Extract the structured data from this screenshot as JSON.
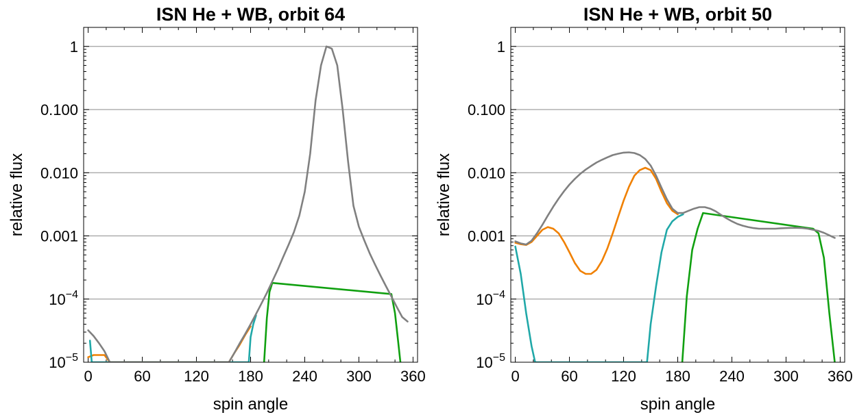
{
  "chart_data": [
    {
      "type": "line",
      "title": "ISN He + WB, orbit 64",
      "xlabel": "spin angle",
      "ylabel": "relative flux",
      "xlim": [
        -5,
        365
      ],
      "ylim": [
        1e-05,
        2
      ],
      "yscale": "log",
      "x_ticks": [
        "0",
        "60",
        "120",
        "180",
        "240",
        "300",
        "360"
      ],
      "y_ticks": [
        "10^-5",
        "10^-4",
        "0.001",
        "0.010",
        "0.100",
        "1"
      ],
      "grid": "horizontal",
      "series": [
        {
          "color": "#f08000",
          "x": [
            0,
            6,
            12,
            18,
            24,
            156,
            162,
            168,
            174,
            180
          ],
          "y": [
            1.2e-05,
            1.3e-05,
            1.3e-05,
            1.3e-05,
            1e-05,
            1e-05,
            1.4e-05,
            1.9e-05,
            2.7e-05,
            3.7e-05
          ]
        },
        {
          "color": "#20a8a8",
          "x": [
            2,
            3,
            4,
            178,
            180,
            183,
            186
          ],
          "y": [
            2.2e-05,
            1.5e-05,
            1e-05,
            1e-05,
            2.5e-05,
            4e-05,
            5.5e-05
          ]
        },
        {
          "color": "#10a010",
          "x": [
            195,
            198,
            201,
            204,
            336,
            340,
            343,
            346
          ],
          "y": [
            1e-05,
            5e-05,
            0.00013,
            0.00018,
            0.00012,
            6e-05,
            2.5e-05,
            1e-05
          ]
        },
        {
          "color": "#808080",
          "x": [
            0,
            6,
            12,
            18,
            24,
            156,
            162,
            168,
            174,
            180,
            186,
            192,
            198,
            204,
            210,
            216,
            222,
            228,
            234,
            240,
            246,
            252,
            258,
            264,
            270,
            276,
            282,
            288,
            294,
            300,
            306,
            312,
            318,
            324,
            330,
            336,
            342,
            348,
            354
          ],
          "y": [
            3.2e-05,
            2.6e-05,
            2e-05,
            1.5e-05,
            1e-05,
            1e-05,
            1.4e-05,
            2e-05,
            2.8e-05,
            4e-05,
            5.8e-05,
            8.5e-05,
            0.000125,
            0.00019,
            0.00029,
            0.00046,
            0.00072,
            0.00115,
            0.0021,
            0.005,
            0.02,
            0.14,
            0.5,
            1.0,
            0.92,
            0.5,
            0.1,
            0.015,
            0.003,
            0.0014,
            0.00085,
            0.00053,
            0.00035,
            0.000235,
            0.00016,
            0.00011,
            7.5e-05,
            5.2e-05,
            4.4e-05
          ]
        }
      ]
    },
    {
      "type": "line",
      "title": "ISN He + WB, orbit 50",
      "xlabel": "spin angle",
      "ylabel": "relative flux",
      "xlim": [
        -5,
        365
      ],
      "ylim": [
        1e-05,
        2
      ],
      "yscale": "log",
      "x_ticks": [
        "0",
        "60",
        "120",
        "180",
        "240",
        "300",
        "360"
      ],
      "y_ticks": [
        "10^-5",
        "10^-4",
        "0.001",
        "0.010",
        "0.100",
        "1"
      ],
      "grid": "horizontal",
      "series": [
        {
          "color": "#f08000",
          "x": [
            0,
            6,
            12,
            18,
            24,
            30,
            36,
            42,
            48,
            54,
            60,
            66,
            72,
            78,
            84,
            90,
            96,
            102,
            108,
            114,
            120,
            126,
            132,
            138,
            144,
            150,
            156,
            162,
            168,
            174,
            180
          ],
          "y": [
            0.00078,
            0.00074,
            0.00072,
            0.0008,
            0.001,
            0.00125,
            0.00138,
            0.0013,
            0.0011,
            0.0008,
            0.00055,
            0.00037,
            0.00028,
            0.00025,
            0.00025,
            0.00029,
            0.0004,
            0.00063,
            0.0011,
            0.002,
            0.0036,
            0.006,
            0.009,
            0.011,
            0.012,
            0.011,
            0.008,
            0.005,
            0.0033,
            0.0025,
            0.0022
          ]
        },
        {
          "color": "#20a8a8",
          "x": [
            0,
            6,
            12,
            18,
            22,
            146,
            150,
            156,
            162,
            168,
            174,
            180,
            186
          ],
          "y": [
            0.00068,
            0.00025,
            6e-05,
            1.8e-05,
            1e-05,
            1e-05,
            4e-05,
            0.00016,
            0.00055,
            0.00125,
            0.0017,
            0.002,
            0.0022
          ]
        },
        {
          "color": "#10a010",
          "x": [
            185,
            190,
            196,
            202,
            208,
            330,
            336,
            342,
            348,
            354
          ],
          "y": [
            1e-05,
            0.00011,
            0.0006,
            0.0013,
            0.0023,
            0.0013,
            0.0011,
            0.00045,
            6e-05,
            1e-05
          ]
        },
        {
          "color": "#808080",
          "x": [
            0,
            6,
            12,
            18,
            24,
            30,
            36,
            42,
            48,
            54,
            60,
            66,
            72,
            78,
            84,
            90,
            96,
            102,
            108,
            114,
            120,
            126,
            132,
            138,
            144,
            150,
            156,
            162,
            168,
            174,
            180,
            186,
            192,
            198,
            204,
            210,
            216,
            222,
            228,
            234,
            240,
            246,
            252,
            258,
            264,
            270,
            276,
            282,
            288,
            294,
            300,
            306,
            312,
            318,
            324,
            330,
            336,
            342,
            348,
            354
          ],
          "y": [
            0.00082,
            0.00076,
            0.00073,
            0.00084,
            0.0011,
            0.0015,
            0.0021,
            0.0029,
            0.0039,
            0.0051,
            0.0065,
            0.008,
            0.0096,
            0.0112,
            0.0128,
            0.0145,
            0.016,
            0.0175,
            0.019,
            0.02,
            0.0208,
            0.021,
            0.0205,
            0.019,
            0.0165,
            0.013,
            0.009,
            0.0058,
            0.0038,
            0.0027,
            0.0023,
            0.0023,
            0.0025,
            0.0027,
            0.00285,
            0.00285,
            0.0027,
            0.00245,
            0.00215,
            0.0019,
            0.0017,
            0.00155,
            0.00145,
            0.00138,
            0.00133,
            0.0013,
            0.0013,
            0.0013,
            0.0013,
            0.00132,
            0.00133,
            0.00134,
            0.00134,
            0.00133,
            0.0013,
            0.00125,
            0.0012,
            0.00112,
            0.00102,
            0.00093
          ]
        }
      ]
    }
  ]
}
